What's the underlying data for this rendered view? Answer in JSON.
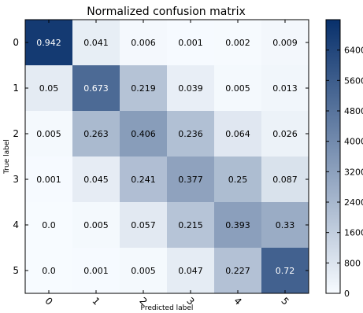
{
  "chart_data": {
    "type": "heatmap",
    "title": "Normalized confusion matrix",
    "xlabel": "Predicted label",
    "ylabel": "True label",
    "x_tick_labels": [
      "0",
      "1",
      "2",
      "3",
      "4",
      "5"
    ],
    "y_tick_labels": [
      "0",
      "1",
      "2",
      "3",
      "4",
      "5"
    ],
    "values": [
      [
        "0.942",
        "0.041",
        "0.006",
        "0.001",
        "0.002",
        "0.009"
      ],
      [
        "0.05",
        "0.673",
        "0.219",
        "0.039",
        "0.005",
        "0.013"
      ],
      [
        "0.005",
        "0.263",
        "0.406",
        "0.236",
        "0.064",
        "0.026"
      ],
      [
        "0.001",
        "0.045",
        "0.241",
        "0.377",
        "0.25",
        "0.087"
      ],
      [
        "0.0",
        "0.005",
        "0.057",
        "0.215",
        "0.393",
        "0.33"
      ],
      [
        "0.0",
        "0.001",
        "0.005",
        "0.047",
        "0.227",
        "0.72"
      ]
    ],
    "colorbar": {
      "range": [
        0,
        7200
      ],
      "tick_labels": [
        "0",
        "800",
        "1600",
        "2400",
        "3200",
        "4000",
        "4800",
        "5600",
        "6400"
      ],
      "tick_values": [
        0,
        800,
        1600,
        2400,
        3200,
        4000,
        4800,
        5600,
        6400
      ]
    },
    "colormap": {
      "low": "#f7fbff",
      "high": "#08306b"
    },
    "grid": false
  }
}
